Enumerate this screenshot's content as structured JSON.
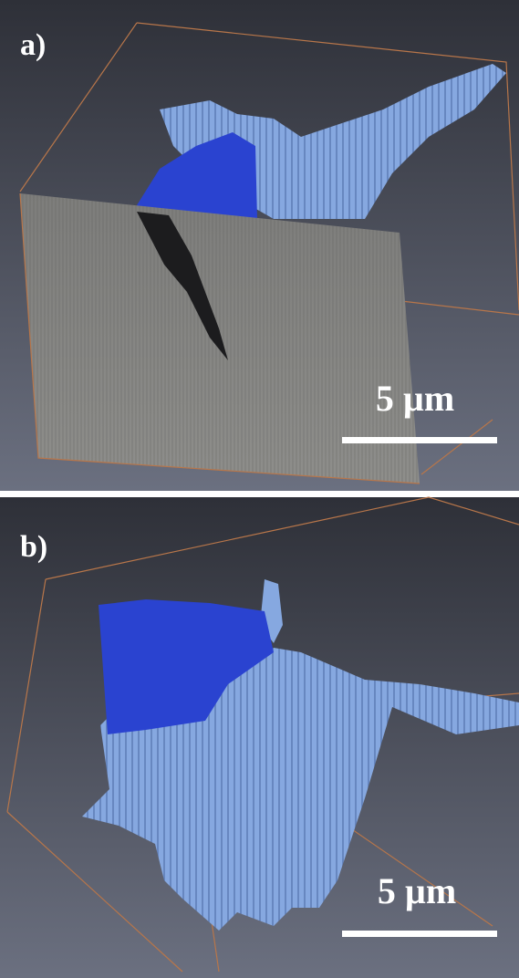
{
  "panels": [
    {
      "label": "a)",
      "scale_bar": "5 µm"
    },
    {
      "label": "b)",
      "scale_bar": "5 µm"
    }
  ]
}
